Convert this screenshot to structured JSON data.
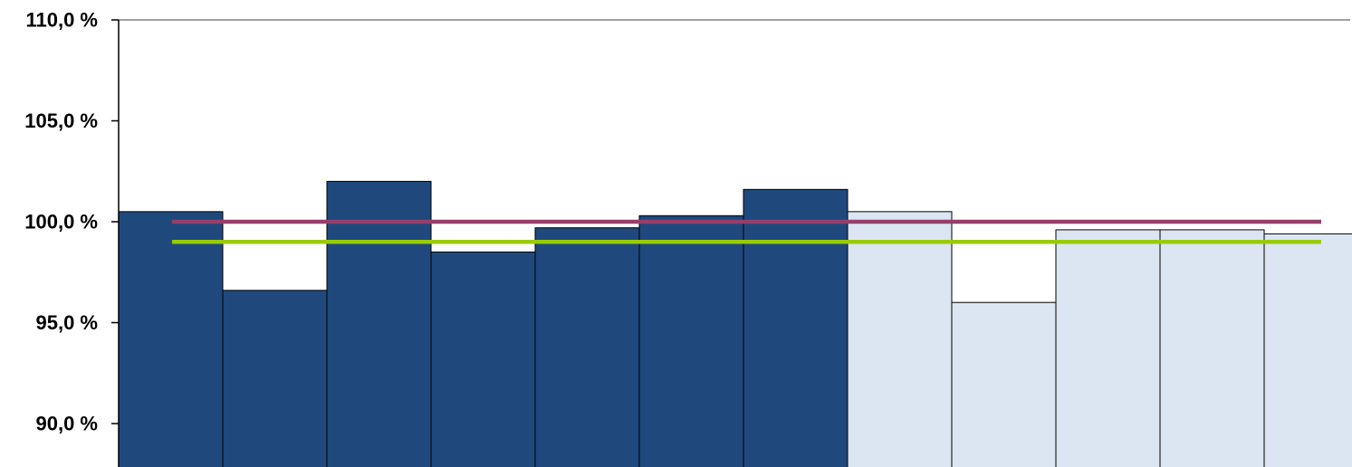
{
  "chart_data": {
    "type": "bar",
    "ylim": [
      87.6,
      110.0
    ],
    "yticks": [
      90.0,
      95.0,
      100.0,
      105.0,
      110.0
    ],
    "ytick_labels": [
      "90,0 %",
      "95,0 %",
      "100,0 %",
      "105,0 %",
      "110,0 %"
    ],
    "values": [
      100.5,
      96.6,
      102.0,
      98.5,
      99.7,
      100.3,
      101.6,
      100.5,
      96.0,
      99.6,
      99.6,
      99.4
    ],
    "bar_colors": [
      "#1f497d",
      "#1f497d",
      "#1f497d",
      "#1f497d",
      "#1f497d",
      "#1f497d",
      "#1f497d",
      "#dce6f2",
      "#dce6f2",
      "#dce6f2",
      "#dce6f2",
      "#dce6f2"
    ],
    "reference_lines": [
      {
        "value": 100.0,
        "color": "#963f6b"
      },
      {
        "value": 99.0,
        "color": "#99cc00"
      }
    ],
    "grid": false,
    "xlabel": "",
    "ylabel": ""
  }
}
